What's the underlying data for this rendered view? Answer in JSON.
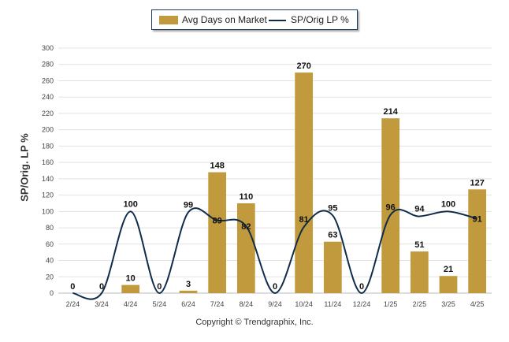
{
  "chart_data": {
    "type": "bar",
    "categories": [
      "2/24",
      "3/24",
      "4/24",
      "5/24",
      "6/24",
      "7/24",
      "8/24",
      "9/24",
      "10/24",
      "11/24",
      "12/24",
      "1/25",
      "2/25",
      "3/25",
      "4/25"
    ],
    "series": [
      {
        "name": "Avg Days on Market",
        "type": "bar",
        "values": [
          0,
          0,
          10,
          0,
          3,
          148,
          110,
          0,
          270,
          63,
          0,
          214,
          51,
          21,
          127
        ]
      },
      {
        "name": "SP/Orig LP %",
        "type": "line",
        "values": [
          0,
          0,
          100,
          0,
          99,
          89,
          82,
          0,
          81,
          95,
          0,
          96,
          94,
          100,
          91
        ]
      }
    ],
    "ylabel": "SP/Orig. LP %",
    "ylim": [
      0,
      300
    ],
    "yticks": [
      0,
      20,
      40,
      60,
      80,
      100,
      120,
      140,
      160,
      180,
      200,
      220,
      240,
      260,
      280,
      300
    ],
    "grid": true,
    "legend": "top-center",
    "colors": {
      "bar": "#c19a3d",
      "line": "#0f2d4a",
      "grid": "#e3e3e3"
    }
  },
  "legend": {
    "bar_label": "Avg Days on Market",
    "line_label": "SP/Orig LP %"
  },
  "footer": {
    "copyright": "Copyright © Trendgraphix, Inc."
  }
}
